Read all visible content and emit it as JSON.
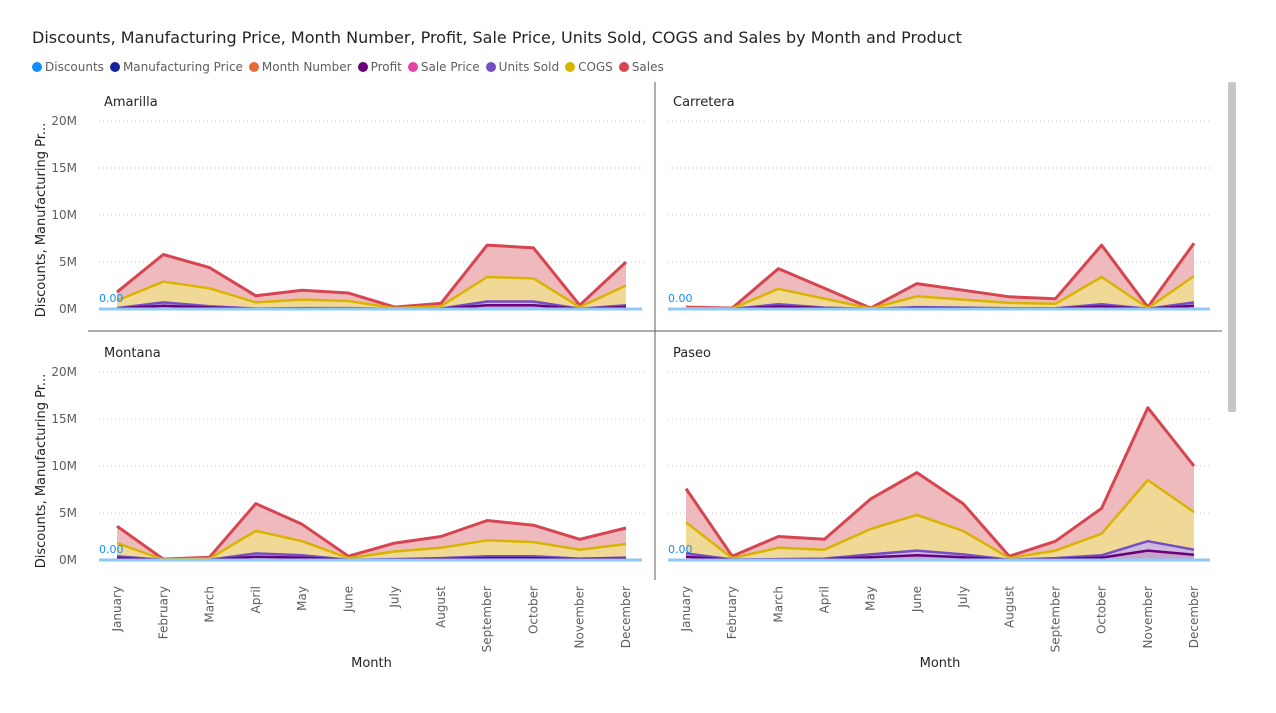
{
  "title": "Discounts, Manufacturing Price, Month Number, Profit, Sale Price, Units Sold, COGS and Sales by Month and Product",
  "legend": [
    {
      "name": "Discounts",
      "color": "#118DFF"
    },
    {
      "name": "Manufacturing Price",
      "color": "#12239E"
    },
    {
      "name": "Month Number",
      "color": "#E66C37"
    },
    {
      "name": "Profit",
      "color": "#6B007B"
    },
    {
      "name": "Sale Price",
      "color": "#E044A7"
    },
    {
      "name": "Units Sold",
      "color": "#744EC2"
    },
    {
      "name": "COGS",
      "color": "#D9B300"
    },
    {
      "name": "Sales",
      "color": "#D64550"
    }
  ],
  "chart_data": {
    "type": "area",
    "small_multiples_by": "Product",
    "xlabel": "Month",
    "ylabel": "Discounts, Manufacturing Pr...",
    "y_ticks": [
      "0M",
      "5M",
      "10M",
      "15M",
      "20M"
    ],
    "ylim": [
      0,
      22000000
    ],
    "reference_label": "0.00",
    "categories": [
      "January",
      "February",
      "March",
      "April",
      "May",
      "June",
      "July",
      "August",
      "September",
      "October",
      "November",
      "December"
    ],
    "panels": [
      {
        "name": "Amarilla",
        "series": [
          {
            "name": "Sales",
            "values": [
              1800000,
              5800000,
              4400000,
              1400000,
              2000000,
              1700000,
              200000,
              600000,
              6800000,
              6500000,
              400000,
              5000000
            ]
          },
          {
            "name": "COGS",
            "values": [
              900000,
              2900000,
              2200000,
              700000,
              1000000,
              850000,
              100000,
              300000,
              3400000,
              3250000,
              200000,
              2500000
            ]
          },
          {
            "name": "Units Sold",
            "values": [
              100000,
              700000,
              300000,
              50000,
              100000,
              100000,
              20000,
              50000,
              800000,
              800000,
              30000,
              400000
            ]
          },
          {
            "name": "Profit",
            "values": [
              50000,
              350000,
              150000,
              30000,
              60000,
              50000,
              10000,
              30000,
              400000,
              400000,
              15000,
              200000
            ]
          }
        ]
      },
      {
        "name": "Carretera",
        "series": [
          {
            "name": "Sales",
            "values": [
              200000,
              100000,
              4300000,
              2200000,
              100000,
              2700000,
              2000000,
              1300000,
              1100000,
              6800000,
              200000,
              7000000
            ]
          },
          {
            "name": "COGS",
            "values": [
              100000,
              50000,
              2150000,
              1100000,
              50000,
              1350000,
              1000000,
              650000,
              550000,
              3400000,
              100000,
              3500000
            ]
          },
          {
            "name": "Units Sold",
            "values": [
              20000,
              10000,
              500000,
              150000,
              10000,
              200000,
              150000,
              80000,
              80000,
              500000,
              20000,
              700000
            ]
          },
          {
            "name": "Profit",
            "values": [
              10000,
              5000,
              250000,
              80000,
              5000,
              100000,
              80000,
              40000,
              40000,
              250000,
              10000,
              350000
            ]
          }
        ]
      },
      {
        "name": "Montana",
        "series": [
          {
            "name": "Sales",
            "values": [
              3600000,
              100000,
              300000,
              6000000,
              3800000,
              400000,
              1800000,
              2500000,
              4200000,
              3700000,
              2200000,
              3400000
            ]
          },
          {
            "name": "COGS",
            "values": [
              1800000,
              50000,
              150000,
              3100000,
              2000000,
              200000,
              900000,
              1300000,
              2100000,
              1900000,
              1100000,
              1700000
            ]
          },
          {
            "name": "Units Sold",
            "values": [
              400000,
              10000,
              30000,
              700000,
              500000,
              30000,
              100000,
              200000,
              400000,
              400000,
              150000,
              250000
            ]
          },
          {
            "name": "Profit",
            "values": [
              200000,
              5000,
              15000,
              350000,
              250000,
              15000,
              50000,
              100000,
              200000,
              200000,
              80000,
              120000
            ]
          }
        ]
      },
      {
        "name": "Paseo",
        "series": [
          {
            "name": "Sales",
            "values": [
              7600000,
              400000,
              2500000,
              2200000,
              6500000,
              9300000,
              6000000,
              400000,
              2000000,
              5500000,
              16200000,
              10000000
            ]
          },
          {
            "name": "COGS",
            "values": [
              4000000,
              200000,
              1300000,
              1100000,
              3300000,
              4800000,
              3100000,
              200000,
              1000000,
              2800000,
              8500000,
              5100000
            ]
          },
          {
            "name": "Units Sold",
            "values": [
              700000,
              50000,
              100000,
              150000,
              600000,
              1000000,
              600000,
              30000,
              200000,
              500000,
              2000000,
              1100000
            ]
          },
          {
            "name": "Profit",
            "values": [
              350000,
              25000,
              50000,
              80000,
              300000,
              500000,
              300000,
              15000,
              100000,
              250000,
              1000000,
              550000
            ]
          }
        ]
      }
    ]
  }
}
